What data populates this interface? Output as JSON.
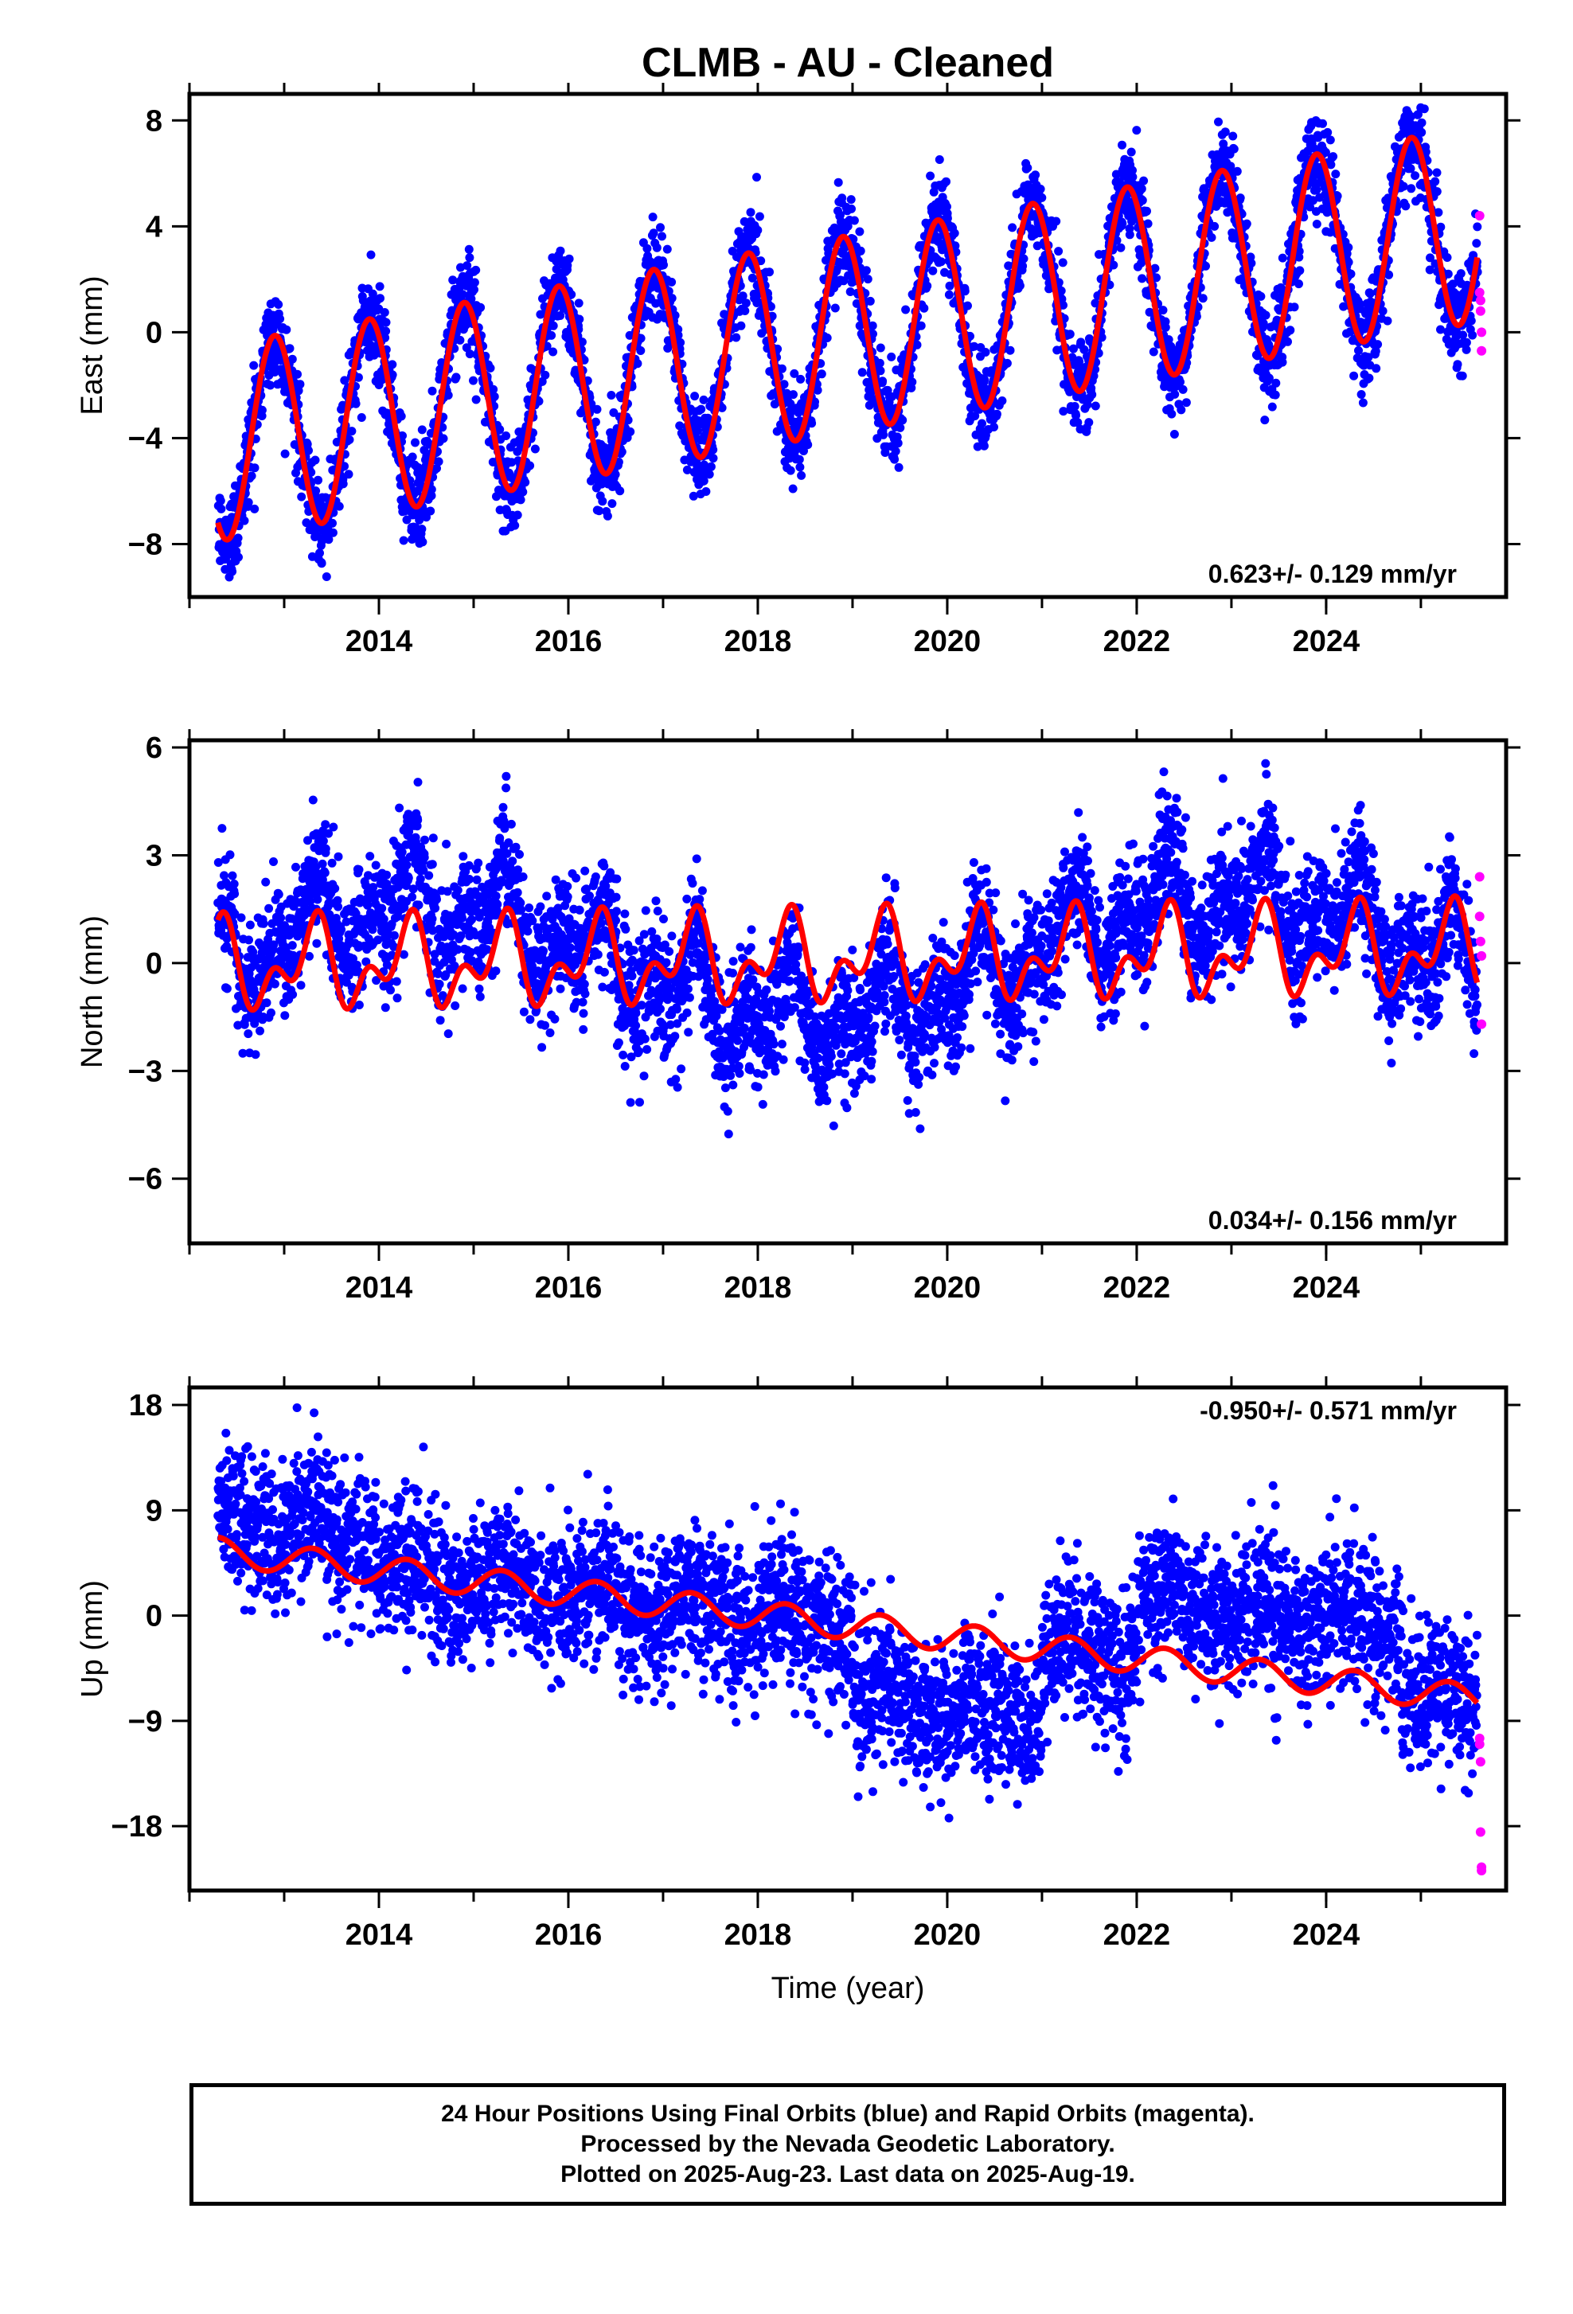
{
  "figure": {
    "title": "CLMB  - AU - Cleaned",
    "xlabel": "Time (year)",
    "colors": {
      "final": "#0000ff",
      "rapid": "#ff00ff",
      "model": "#ff0000"
    }
  },
  "footer": {
    "line1": "24 Hour Positions Using Final Orbits (blue) and Rapid Orbits (magenta).",
    "line2": "Processed by the Nevada Geodetic Laboratory.",
    "line3": "Plotted on 2025-Aug-23. Last data on 2025-Aug-19."
  },
  "chart_data": [
    {
      "type": "scatter",
      "ylabel": "East (mm)",
      "rate_label": "0.623+/- 0.129 mm/yr",
      "xlim": [
        2012.0,
        2025.9
      ],
      "ylim": [
        -10.0,
        9.0
      ],
      "xticks": [
        2014,
        2016,
        2018,
        2020,
        2022,
        2024
      ],
      "xtick_labels": [
        "2014",
        "2016",
        "2018",
        "2020",
        "2022",
        "2024"
      ],
      "yticks": [
        -8,
        -4,
        0,
        4,
        8
      ],
      "ytick_labels": [
        "−8",
        "−4",
        "0",
        "4",
        "8"
      ],
      "model": {
        "start": 2012.3,
        "end": 2025.6,
        "offset": -4.2,
        "rate": 0.623,
        "annual_amp": 3.7,
        "annual_phase": 2012.9
      },
      "final_orbits": {
        "start": 2012.3,
        "end": 2025.6,
        "scatter": 1.1
      },
      "rapid_orbits": {
        "x": [
          2025.62,
          2025.62,
          2025.63,
          2025.63,
          2025.64,
          2025.64
        ],
        "y": [
          4.4,
          1.5,
          1.2,
          0.8,
          0.0,
          -0.7
        ]
      }
    },
    {
      "type": "scatter",
      "ylabel": "North (mm)",
      "rate_label": "0.034+/- 0.156 mm/yr",
      "xlim": [
        2012.0,
        2025.9
      ],
      "ylim": [
        -7.8,
        6.2
      ],
      "xticks": [
        2014,
        2016,
        2018,
        2020,
        2022,
        2024
      ],
      "xtick_labels": [
        "2014",
        "2016",
        "2018",
        "2020",
        "2022",
        "2024"
      ],
      "yticks": [
        -6,
        -3,
        0,
        3,
        6
      ],
      "ytick_labels": [
        "−6",
        "−3",
        "0",
        "3",
        "6"
      ],
      "model": {
        "start": 2012.3,
        "end": 2025.6,
        "offset": -0.1,
        "rate": 0.034,
        "annual_amp": 0.9,
        "semi_amp": 0.7
      },
      "final_orbits": {
        "start": 2012.3,
        "end": 2025.6,
        "scatter": 1.1
      },
      "rapid_orbits": {
        "x": [
          2025.62,
          2025.62,
          2025.63,
          2025.64,
          2025.64
        ],
        "y": [
          2.4,
          1.3,
          0.6,
          0.2,
          -1.7
        ]
      }
    },
    {
      "type": "scatter",
      "ylabel": "Up (mm)",
      "rate_label": "-0.950+/- 0.571 mm/yr",
      "xlim": [
        2012.0,
        2025.9
      ],
      "ylim": [
        -23.5,
        19.5
      ],
      "xticks": [
        2014,
        2016,
        2018,
        2020,
        2022,
        2024
      ],
      "xtick_labels": [
        "2014",
        "2016",
        "2018",
        "2020",
        "2022",
        "2024"
      ],
      "yticks": [
        -18,
        -9,
        0,
        9,
        18
      ],
      "ytick_labels": [
        "−18",
        "−9",
        "0",
        "9",
        "18"
      ],
      "model": {
        "start": 2012.3,
        "end": 2025.6,
        "offset": 5.5,
        "rate": -0.95,
        "annual_amp": 1.2
      },
      "final_orbits": {
        "start": 2012.3,
        "end": 2025.6,
        "scatter": 3.8
      },
      "rapid_orbits": {
        "x": [
          2025.62,
          2025.62,
          2025.63,
          2025.63,
          2025.64,
          2025.64
        ],
        "y": [
          -10.5,
          -11.0,
          -12.5,
          -18.5,
          -21.5,
          -21.8
        ]
      }
    }
  ]
}
